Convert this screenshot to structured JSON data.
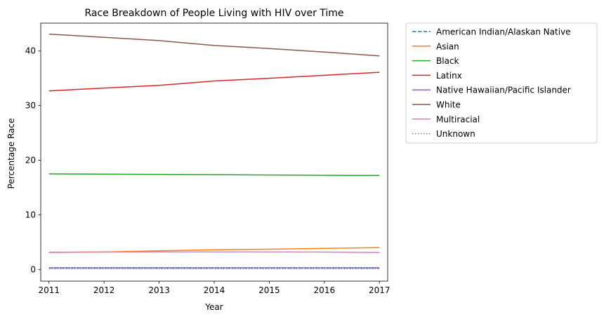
{
  "chart_data": {
    "type": "line",
    "title": "Race Breakdown of People Living with HIV over Time",
    "xlabel": "Year",
    "ylabel": "Percentage Race",
    "x": [
      2011,
      2012,
      2013,
      2014,
      2015,
      2016,
      2017
    ],
    "xticks": [
      "2011",
      "2012",
      "2013",
      "2014",
      "2015",
      "2016",
      "2017"
    ],
    "yticks": [
      0,
      10,
      20,
      30,
      40
    ],
    "xlim": [
      2010.85,
      2017.15
    ],
    "ylim": [
      -2.15,
      45.1
    ],
    "grid": false,
    "legend_position": "outside-right-top",
    "series": [
      {
        "name": "American Indian/Alaskan Native",
        "color": "#1f77b4",
        "dash": "dashed",
        "values": [
          0.25,
          0.25,
          0.25,
          0.25,
          0.25,
          0.25,
          0.25
        ]
      },
      {
        "name": "Asian",
        "color": "#ff7f0e",
        "dash": "solid",
        "values": [
          3.1,
          3.2,
          3.4,
          3.6,
          3.7,
          3.85,
          4.0
        ]
      },
      {
        "name": "Black",
        "color": "#2ca02c",
        "dash": "solid",
        "values": [
          17.5,
          17.45,
          17.4,
          17.35,
          17.28,
          17.22,
          17.2
        ]
      },
      {
        "name": "Latinx",
        "color": "#d62728",
        "dash": "solid",
        "values": [
          32.7,
          33.2,
          33.7,
          34.5,
          35.0,
          35.55,
          36.1
        ]
      },
      {
        "name": "Native Hawaiian/Pacific Islander",
        "color": "#9467bd",
        "dash": "solid",
        "values": [
          0.3,
          0.3,
          0.3,
          0.3,
          0.3,
          0.3,
          0.3
        ]
      },
      {
        "name": "White",
        "color": "#8c564b",
        "dash": "solid",
        "values": [
          43.1,
          42.5,
          41.9,
          41.0,
          40.45,
          39.8,
          39.1
        ]
      },
      {
        "name": "Multiracial",
        "color": "#e377c2",
        "dash": "solid",
        "values": [
          3.15,
          3.18,
          3.2,
          3.2,
          3.2,
          3.18,
          3.1
        ]
      },
      {
        "name": "Unknown",
        "color": "#7f7f7f",
        "dash": "dotted",
        "values": [
          0.1,
          0.1,
          0.1,
          0.1,
          0.1,
          0.1,
          0.1
        ]
      }
    ]
  }
}
